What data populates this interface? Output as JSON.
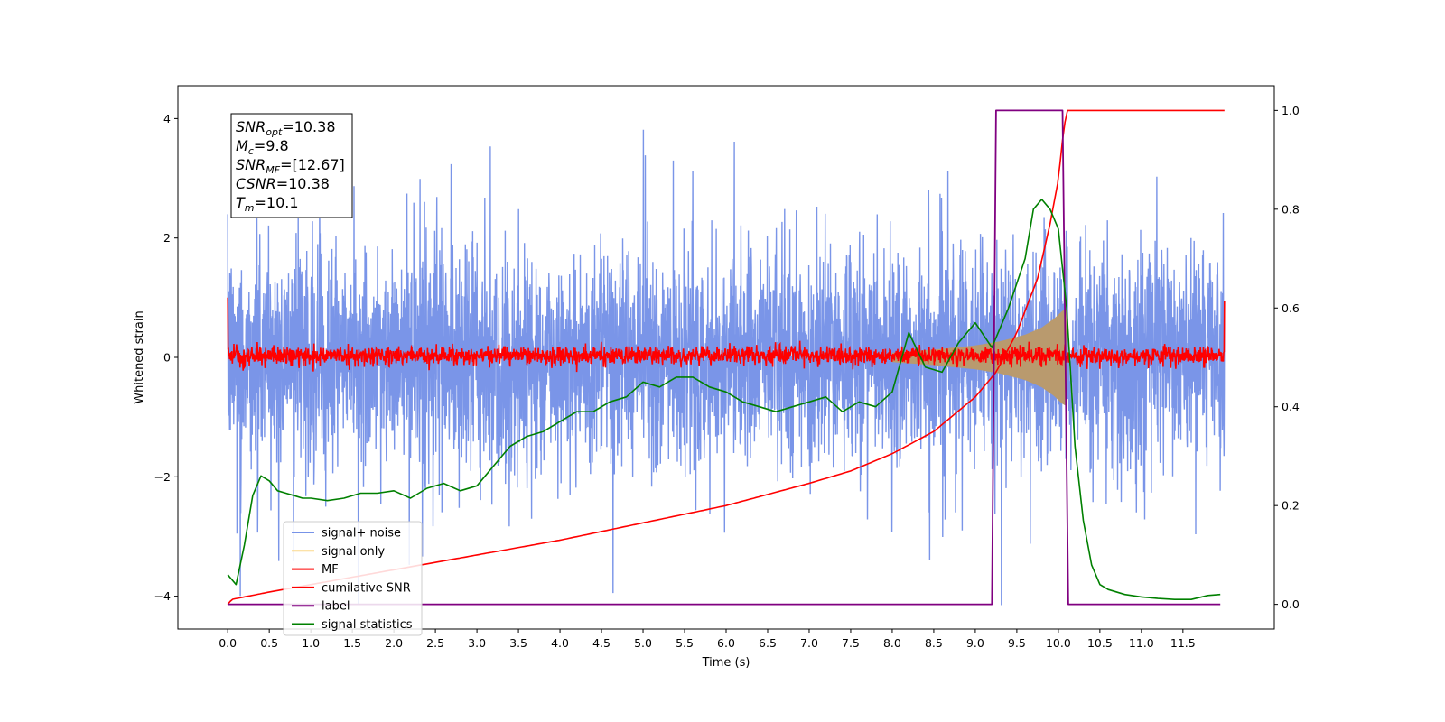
{
  "chart_data": {
    "type": "line",
    "xlabel": "Time (s)",
    "ylabel": "Whitened strain",
    "xlim": [
      -0.6,
      12.6
    ],
    "ylim": [
      -4.55,
      4.55
    ],
    "ylim_right": [
      -0.05,
      1.05
    ],
    "grid": false,
    "legend_position": "lower-left",
    "x_ticks": [
      0.0,
      0.5,
      1.0,
      1.5,
      2.0,
      2.5,
      3.0,
      3.5,
      4.0,
      4.5,
      5.0,
      5.5,
      6.0,
      6.5,
      7.0,
      7.5,
      8.0,
      8.5,
      9.0,
      9.5,
      10.0,
      10.5,
      11.0,
      11.5
    ],
    "x_tick_labels": [
      "0.0",
      "0.5",
      "1.0",
      "1.5",
      "2.0",
      "2.5",
      "3.0",
      "3.5",
      "4.0",
      "4.5",
      "5.0",
      "5.5",
      "6.0",
      "6.5",
      "7.0",
      "7.5",
      "8.0",
      "8.5",
      "9.0",
      "9.5",
      "10.0",
      "10.5",
      "11.0",
      "11.5"
    ],
    "y_ticks": [
      -4,
      -2,
      0,
      2,
      4
    ],
    "y_tick_labels": [
      "−4",
      "−2",
      "0",
      "2",
      "4"
    ],
    "y_ticks_right": [
      0.0,
      0.2,
      0.4,
      0.6,
      0.8,
      1.0
    ],
    "y_tick_labels_right": [
      "0.0",
      "0.2",
      "0.4",
      "0.6",
      "0.8",
      "1.0"
    ],
    "annotation": {
      "lines": [
        {
          "main": "SNR",
          "sub": "opt",
          "value": "=10.38"
        },
        {
          "main": "M",
          "sub": "c",
          "value": "=9.8"
        },
        {
          "main": "SNR",
          "sub": "MF",
          "value": "=[12.67]"
        },
        {
          "main": "CSNR",
          "sub": "",
          "value": "=10.38"
        },
        {
          "main": "T",
          "sub": "m",
          "value": "=10.1"
        }
      ]
    },
    "series": [
      {
        "name": "signal+ noise",
        "axis": "left",
        "color": "#7793e8",
        "kind": "noise",
        "x_range": [
          0.0,
          12.0
        ],
        "typical_amplitude": 2.4,
        "peak_amplitude": 3.9,
        "min_value": -4.15
      },
      {
        "name": "signal only",
        "axis": "left",
        "color": "#fcd88c",
        "kind": "chirp-envelope",
        "x": [
          8.0,
          8.5,
          9.0,
          9.3,
          9.6,
          9.8,
          9.95,
          10.05,
          10.1
        ],
        "envelope": [
          0.08,
          0.13,
          0.2,
          0.27,
          0.38,
          0.5,
          0.65,
          0.78,
          0.82
        ]
      },
      {
        "name": "MF",
        "axis": "left",
        "color": "#ff0000",
        "kind": "noise",
        "x_range": [
          0.0,
          12.0
        ],
        "typical_amplitude": 0.18,
        "edge_values": [
          1.0,
          0.95
        ]
      },
      {
        "name": "cumilative SNR",
        "axis": "right",
        "color": "#ff0000",
        "x": [
          0.0,
          0.05,
          0.5,
          1.0,
          2.0,
          3.0,
          4.0,
          5.0,
          6.0,
          7.0,
          7.5,
          8.0,
          8.5,
          9.0,
          9.25,
          9.5,
          9.75,
          9.9,
          10.0,
          10.05,
          10.1,
          10.2,
          11.0,
          12.0
        ],
        "values": [
          0.0,
          0.01,
          0.025,
          0.04,
          0.07,
          0.1,
          0.13,
          0.165,
          0.2,
          0.245,
          0.27,
          0.305,
          0.35,
          0.42,
          0.47,
          0.55,
          0.66,
          0.77,
          0.86,
          0.94,
          1.0,
          1.0,
          1.0,
          1.0
        ]
      },
      {
        "name": "label",
        "axis": "right",
        "color": "#800080",
        "x": [
          0.0,
          9.2,
          9.25,
          10.05,
          10.12,
          11.95
        ],
        "values": [
          0.0,
          0.0,
          1.0,
          1.0,
          0.0,
          0.0
        ]
      },
      {
        "name": "signal statistics",
        "axis": "right",
        "color": "#008000",
        "x": [
          0.0,
          0.1,
          0.2,
          0.3,
          0.4,
          0.5,
          0.6,
          0.7,
          0.8,
          0.9,
          1.0,
          1.2,
          1.4,
          1.6,
          1.8,
          2.0,
          2.2,
          2.4,
          2.6,
          2.8,
          3.0,
          3.2,
          3.4,
          3.6,
          3.8,
          4.0,
          4.2,
          4.4,
          4.6,
          4.8,
          5.0,
          5.2,
          5.4,
          5.6,
          5.8,
          6.0,
          6.2,
          6.4,
          6.6,
          6.8,
          7.0,
          7.2,
          7.4,
          7.6,
          7.8,
          8.0,
          8.2,
          8.4,
          8.6,
          8.8,
          9.0,
          9.2,
          9.4,
          9.6,
          9.7,
          9.8,
          9.9,
          10.0,
          10.1,
          10.2,
          10.3,
          10.4,
          10.5,
          10.6,
          10.8,
          11.0,
          11.2,
          11.4,
          11.6,
          11.8,
          11.95
        ],
        "values": [
          0.06,
          0.04,
          0.12,
          0.22,
          0.26,
          0.25,
          0.23,
          0.225,
          0.22,
          0.215,
          0.215,
          0.21,
          0.215,
          0.225,
          0.225,
          0.23,
          0.215,
          0.235,
          0.245,
          0.23,
          0.24,
          0.28,
          0.32,
          0.34,
          0.35,
          0.37,
          0.39,
          0.39,
          0.41,
          0.42,
          0.45,
          0.44,
          0.46,
          0.46,
          0.44,
          0.43,
          0.41,
          0.4,
          0.39,
          0.4,
          0.41,
          0.42,
          0.39,
          0.41,
          0.4,
          0.43,
          0.55,
          0.48,
          0.47,
          0.53,
          0.57,
          0.52,
          0.6,
          0.7,
          0.8,
          0.82,
          0.8,
          0.76,
          0.6,
          0.32,
          0.17,
          0.08,
          0.04,
          0.03,
          0.02,
          0.015,
          0.012,
          0.01,
          0.01,
          0.018,
          0.02
        ]
      }
    ]
  }
}
